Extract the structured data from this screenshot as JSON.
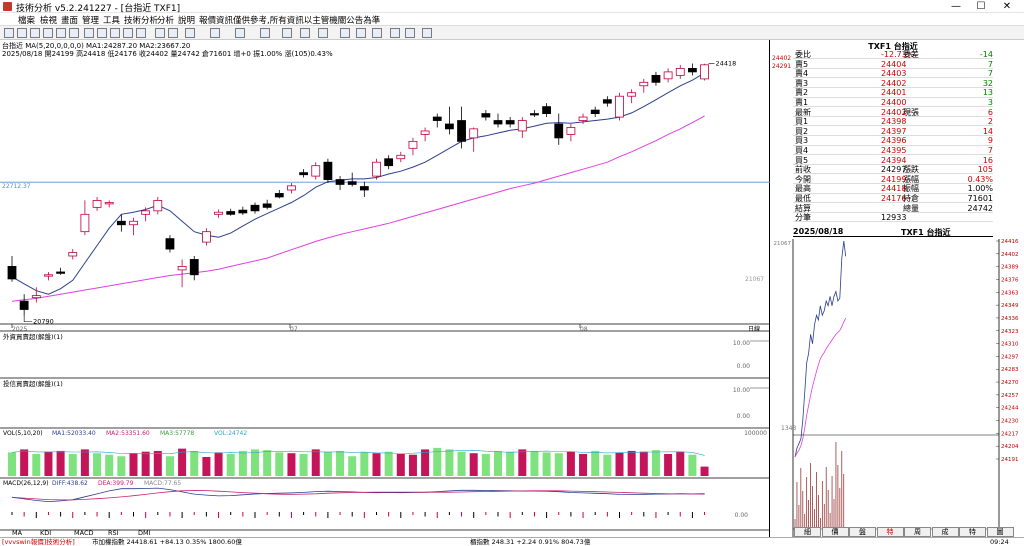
{
  "window": {
    "title": "技術分析 v5.2.241227 - [台指近 TXF1]",
    "minimize": "—",
    "maximize": "☐",
    "close": "✕"
  },
  "menu": [
    "檔案",
    "檢視",
    "畫面",
    "管理",
    "工具",
    "技術分析",
    "分析",
    "說明",
    "報價資訊僅供參考,所有資訊以主管機關公告為準"
  ],
  "chart_data": {
    "type": "candlestick",
    "symbol": "台指近",
    "header_line": "台指近 MA(5,20,0,0,0,0) MA1:24287.20 MA2:23667.20",
    "info_line": "2025/08/18 開24199 高24418 低24176 收24402 量24742 倉71601 增+0 振1.00% 漲(105)0.43%",
    "price_high_label": "24418",
    "price_low_label": "20790",
    "ref_line_label": "22712.37",
    "axis_right_labels": [
      "24402",
      "24291",
      "21067"
    ],
    "x_labels": [
      "2025",
      "07",
      "08"
    ],
    "x_axis_tail": "日線",
    "ylim": [
      20700,
      24500
    ],
    "candles": [
      {
        "o": 21500,
        "h": 21650,
        "l": 21280,
        "c": 21320
      },
      {
        "o": 21000,
        "h": 21100,
        "l": 20790,
        "c": 20880
      },
      {
        "o": 21050,
        "h": 21200,
        "l": 20980,
        "c": 21080
      },
      {
        "o": 21360,
        "h": 21420,
        "l": 21300,
        "c": 21380
      },
      {
        "o": 21420,
        "h": 21480,
        "l": 21380,
        "c": 21400
      },
      {
        "o": 21650,
        "h": 21750,
        "l": 21600,
        "c": 21700
      },
      {
        "o": 22000,
        "h": 22450,
        "l": 21950,
        "c": 22250
      },
      {
        "o": 22350,
        "h": 22500,
        "l": 22300,
        "c": 22450
      },
      {
        "o": 22400,
        "h": 22450,
        "l": 22350,
        "c": 22420
      },
      {
        "o": 22150,
        "h": 22250,
        "l": 22000,
        "c": 22100
      },
      {
        "o": 22100,
        "h": 22200,
        "l": 21950,
        "c": 22150
      },
      {
        "o": 22250,
        "h": 22350,
        "l": 22150,
        "c": 22300
      },
      {
        "o": 22300,
        "h": 22500,
        "l": 22250,
        "c": 22450
      },
      {
        "o": 21900,
        "h": 21950,
        "l": 21700,
        "c": 21750
      },
      {
        "o": 21450,
        "h": 21600,
        "l": 21200,
        "c": 21500
      },
      {
        "o": 21600,
        "h": 21650,
        "l": 21300,
        "c": 21380
      },
      {
        "o": 21850,
        "h": 22050,
        "l": 21800,
        "c": 22000
      },
      {
        "o": 22250,
        "h": 22320,
        "l": 22200,
        "c": 22280
      },
      {
        "o": 22290,
        "h": 22330,
        "l": 22230,
        "c": 22250
      },
      {
        "o": 22310,
        "h": 22360,
        "l": 22240,
        "c": 22270
      },
      {
        "o": 22380,
        "h": 22420,
        "l": 22260,
        "c": 22300
      },
      {
        "o": 22400,
        "h": 22460,
        "l": 22320,
        "c": 22350
      },
      {
        "o": 22550,
        "h": 22600,
        "l": 22480,
        "c": 22500
      },
      {
        "o": 22600,
        "h": 22700,
        "l": 22550,
        "c": 22660
      },
      {
        "o": 22850,
        "h": 22900,
        "l": 22780,
        "c": 22820
      },
      {
        "o": 22800,
        "h": 23000,
        "l": 22750,
        "c": 22950
      },
      {
        "o": 23000,
        "h": 23050,
        "l": 22700,
        "c": 22750
      },
      {
        "o": 22750,
        "h": 22800,
        "l": 22600,
        "c": 22680
      },
      {
        "o": 22720,
        "h": 22850,
        "l": 22650,
        "c": 22680
      },
      {
        "o": 22650,
        "h": 22720,
        "l": 22500,
        "c": 22600
      },
      {
        "o": 22800,
        "h": 23050,
        "l": 22750,
        "c": 23000
      },
      {
        "o": 23050,
        "h": 23100,
        "l": 22900,
        "c": 22950
      },
      {
        "o": 23050,
        "h": 23150,
        "l": 23000,
        "c": 23100
      },
      {
        "o": 23200,
        "h": 23350,
        "l": 23100,
        "c": 23300
      },
      {
        "o": 23400,
        "h": 23500,
        "l": 23300,
        "c": 23450
      },
      {
        "o": 23650,
        "h": 23700,
        "l": 23500,
        "c": 23600
      },
      {
        "o": 23550,
        "h": 23800,
        "l": 23400,
        "c": 23480
      },
      {
        "o": 23600,
        "h": 23800,
        "l": 23200,
        "c": 23300
      },
      {
        "o": 23350,
        "h": 23500,
        "l": 23150,
        "c": 23480
      },
      {
        "o": 23700,
        "h": 23750,
        "l": 23600,
        "c": 23650
      },
      {
        "o": 23600,
        "h": 23700,
        "l": 23500,
        "c": 23550
      },
      {
        "o": 23600,
        "h": 23650,
        "l": 23500,
        "c": 23550
      },
      {
        "o": 23450,
        "h": 23650,
        "l": 23350,
        "c": 23600
      },
      {
        "o": 23700,
        "h": 23750,
        "l": 23650,
        "c": 23680
      },
      {
        "o": 23800,
        "h": 23850,
        "l": 23650,
        "c": 23700
      },
      {
        "o": 23550,
        "h": 23700,
        "l": 23250,
        "c": 23350
      },
      {
        "o": 23400,
        "h": 23550,
        "l": 23300,
        "c": 23500
      },
      {
        "o": 23600,
        "h": 23700,
        "l": 23550,
        "c": 23650
      },
      {
        "o": 23750,
        "h": 23800,
        "l": 23650,
        "c": 23700
      },
      {
        "o": 23900,
        "h": 23950,
        "l": 23800,
        "c": 23850
      },
      {
        "o": 23650,
        "h": 24000,
        "l": 23600,
        "c": 23950
      },
      {
        "o": 23950,
        "h": 24050,
        "l": 23850,
        "c": 24000
      },
      {
        "o": 24100,
        "h": 24200,
        "l": 24000,
        "c": 24150
      },
      {
        "o": 24250,
        "h": 24300,
        "l": 24100,
        "c": 24150
      },
      {
        "o": 24200,
        "h": 24350,
        "l": 24150,
        "c": 24300
      },
      {
        "o": 24250,
        "h": 24400,
        "l": 24200,
        "c": 24350
      },
      {
        "o": 24350,
        "h": 24420,
        "l": 24250,
        "c": 24300
      },
      {
        "o": 24199,
        "h": 24418,
        "l": 24176,
        "c": 24402
      }
    ],
    "ma1": [
      21350,
      21250,
      21150,
      21100,
      21180,
      21300,
      21550,
      21800,
      22050,
      22250,
      22280,
      22320,
      22380,
      22300,
      22150,
      22000,
      21950,
      21920,
      21980,
      22080,
      22180,
      22260,
      22340,
      22420,
      22520,
      22640,
      22720,
      22740,
      22760,
      22760,
      22780,
      22830,
      22870,
      22930,
      23000,
      23100,
      23200,
      23300,
      23350,
      23380,
      23420,
      23460,
      23480,
      23520,
      23560,
      23570,
      23560,
      23580,
      23600,
      23620,
      23650,
      23710,
      23800,
      23900,
      24000,
      24100,
      24180,
      24287
    ],
    "ma2": [
      21000,
      21020,
      21040,
      21070,
      21100,
      21130,
      21160,
      21190,
      21220,
      21250,
      21280,
      21310,
      21340,
      21370,
      21390,
      21410,
      21430,
      21460,
      21500,
      21540,
      21580,
      21620,
      21680,
      21740,
      21800,
      21860,
      21910,
      21960,
      22000,
      22040,
      22080,
      22120,
      22170,
      22220,
      22270,
      22320,
      22370,
      22420,
      22470,
      22520,
      22570,
      22620,
      22660,
      22700,
      22750,
      22800,
      22850,
      22900,
      22950,
      23000,
      23080,
      23150,
      23230,
      23310,
      23400,
      23480,
      23570,
      23667
    ],
    "subpanels": [
      {
        "title": "外資買賣超(解盤)(1)",
        "right_label": "10.00",
        "right_label2": "0.00"
      },
      {
        "title": "投信買賣超(解盤)(1)",
        "right_label": "10.00",
        "right_label2": "0.00"
      }
    ],
    "volume": {
      "title": "VOL(5,10,20)",
      "ma_labels": [
        "MA1:52033.40",
        "MA2:53351.60",
        "MA3:57778",
        "VOL:24742"
      ],
      "right_label": "100000",
      "values": [
        62000,
        70000,
        58000,
        64000,
        66000,
        58000,
        70000,
        60000,
        56000,
        52000,
        60000,
        64000,
        66000,
        52000,
        72000,
        66000,
        50000,
        62000,
        58000,
        66000,
        70000,
        68000,
        62000,
        60000,
        58000,
        70000,
        64000,
        66000,
        52000,
        62000,
        60000,
        64000,
        58000,
        56000,
        70000,
        74000,
        70000,
        64000,
        60000,
        58000,
        66000,
        64000,
        70000,
        66000,
        62000,
        60000,
        64000,
        58000,
        66000,
        56000,
        62000,
        66000,
        64000,
        68000,
        58000,
        64000,
        56000,
        24742
      ],
      "up": [
        false,
        true,
        false,
        true,
        true,
        false,
        true,
        false,
        false,
        false,
        true,
        true,
        true,
        false,
        true,
        false,
        true,
        true,
        false,
        false,
        false,
        false,
        false,
        true,
        false,
        true,
        false,
        false,
        false,
        false,
        true,
        false,
        true,
        true,
        true,
        false,
        false,
        false,
        true,
        false,
        false,
        false,
        true,
        false,
        false,
        false,
        true,
        true,
        false,
        false,
        true,
        true,
        true,
        false,
        true,
        true,
        false,
        true
      ]
    },
    "macd": {
      "title": "MACD(26,12,9)",
      "labels": [
        "DIFF:438.62",
        "DEA:399.79",
        "MACD:77.65"
      ],
      "right_label": "0.00"
    },
    "indicator_tabs": [
      "MA",
      "KDI",
      "MACD",
      "RSI",
      "DMI"
    ]
  },
  "quote": {
    "title": "TXF1 台指近",
    "rows": [
      {
        "k": "委比",
        "v": "-12.73%",
        "k2": "委差",
        "v2": "-14"
      },
      {
        "k": "賣5",
        "v": "24404",
        "v2": "7"
      },
      {
        "k": "賣4",
        "v": "24403",
        "v2": "7"
      },
      {
        "k": "賣3",
        "v": "24402",
        "v2": "32"
      },
      {
        "k": "賣2",
        "v": "24401",
        "v2": "13"
      },
      {
        "k": "賣1",
        "v": "24400",
        "v2": "3"
      },
      {
        "k": "最新",
        "v": "24402",
        "k2": "現張",
        "v2": "6"
      },
      {
        "k": "買1",
        "v": "24398",
        "v2": "2"
      },
      {
        "k": "買2",
        "v": "24397",
        "v2": "14"
      },
      {
        "k": "買3",
        "v": "24396",
        "v2": "9"
      },
      {
        "k": "買4",
        "v": "24395",
        "v2": "7"
      },
      {
        "k": "買5",
        "v": "24394",
        "v2": "16"
      },
      {
        "k": "前收",
        "v": "24297",
        "k2": "漲跌",
        "v2": "105"
      },
      {
        "k": "今開",
        "v": "24199",
        "k2": "漲幅",
        "v2": "0.43%"
      },
      {
        "k": "最高",
        "v": "24418",
        "k2": "振幅",
        "v2": "1.00%"
      },
      {
        "k": "最低",
        "v": "24176",
        "k2": "持倉",
        "v2": "71601"
      },
      {
        "k": "結算",
        "v": "",
        "k2": "總量",
        "v2": "24742"
      },
      {
        "k": "分筆",
        "v": "12933",
        "k2": "",
        "v2": ""
      }
    ],
    "intraday_date": "2025/08/18",
    "intraday_title": "TXF1 台指近",
    "intraday_left_label": "21067",
    "intraday_prices": [
      "24416",
      "24402",
      "24389",
      "24376",
      "24363",
      "24349",
      "24336",
      "24323",
      "24310",
      "24297",
      "24283",
      "24270",
      "24257",
      "24244",
      "24230",
      "24217",
      "24204",
      "24191"
    ],
    "intraday_vol_label": "1343",
    "intraday_series": [
      24191,
      24200,
      24205,
      24210,
      24230,
      24260,
      24290,
      24300,
      24320,
      24310,
      24330,
      24340,
      24335,
      24350,
      24340,
      24345,
      24355,
      24350,
      24360,
      24350,
      24360,
      24365,
      24355,
      24358,
      24400,
      24418,
      24402
    ],
    "intraday_ma": [
      24191,
      24195,
      24198,
      24203,
      24210,
      24222,
      24235,
      24245,
      24256,
      24265,
      24273,
      24281,
      24288,
      24294,
      24298,
      24301,
      24305,
      24308,
      24311,
      24314,
      24317,
      24320,
      24322,
      24324,
      24328,
      24333,
      24337
    ],
    "tabs": [
      "細",
      "價",
      "盤",
      "特",
      "周",
      "成",
      "特",
      "圖"
    ]
  },
  "status": {
    "left": "[vvvswin報價]技術分析]",
    "market1": "市加權指數 24418.61 +84.13 0.35% 1800.60億",
    "market2": "櫃指數 248.31 +2.24 0.91% 804.73億",
    "clock": "09:24"
  },
  "colors": {
    "up": "#c0003c",
    "down": "#000000",
    "vol_up": "#c4145a",
    "vol_down": "#7ee27e",
    "ma1": "#2b3f8f",
    "ma2": "#e040e0"
  }
}
